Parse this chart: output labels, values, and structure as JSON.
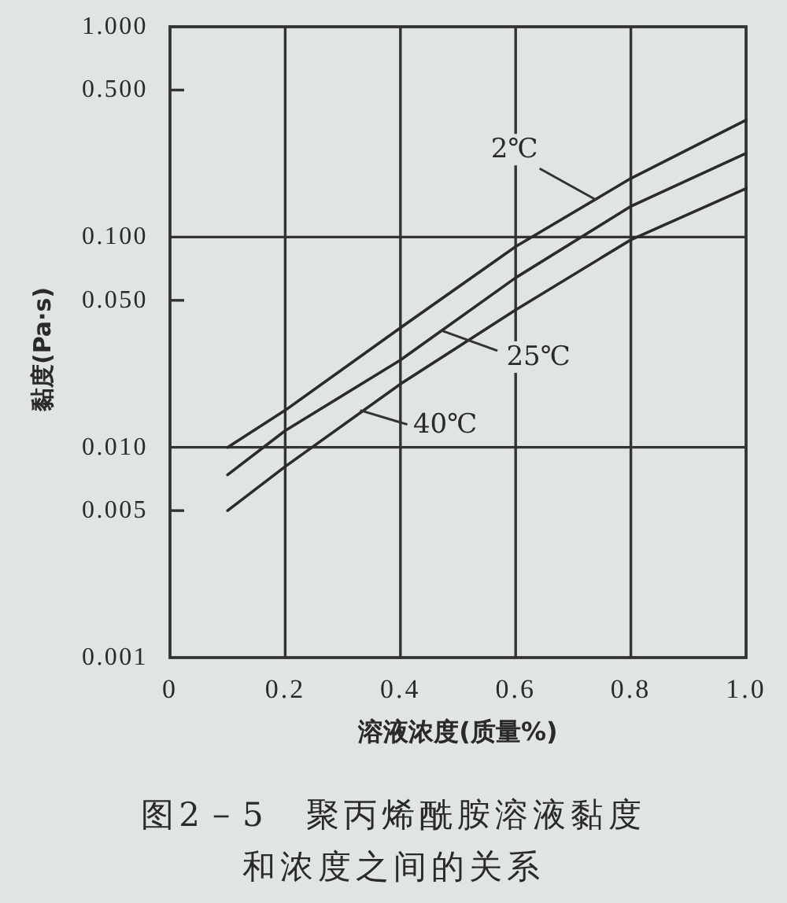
{
  "chart_data": {
    "type": "line",
    "title": "图2－5　聚丙烯酰胺溶液黏度和浓度之间的关系",
    "xlabel": "溶液浓度(质量%)",
    "ylabel": "黏度(Pa·s)",
    "log": "y",
    "grid": true,
    "xlim": [
      0,
      1.0
    ],
    "ylim": [
      0.001,
      1.0
    ],
    "xticks": [
      0,
      0.2,
      0.4,
      0.6,
      0.8,
      {
        "value": 1.0,
        "label": "1.0"
      }
    ],
    "yticks": [
      {
        "value": 0.001,
        "label": "0.001"
      },
      {
        "value": 0.005,
        "label": "0.005"
      },
      {
        "value": 0.01,
        "label": "0.010"
      },
      {
        "value": 0.05,
        "label": "0.050"
      },
      {
        "value": 0.1,
        "label": "0.100"
      },
      {
        "value": 0.5,
        "label": "0.500"
      },
      {
        "value": 1.0,
        "label": "1.000"
      }
    ],
    "series": [
      {
        "color": "#2b2b2b",
        "x": [
          0.1,
          0.2,
          0.4,
          0.6,
          0.8,
          1.0
        ],
        "values": [
          0.01,
          0.015,
          0.037,
          0.09,
          0.19,
          0.36
        ]
      },
      {
        "color": "#2b2b2b",
        "x": [
          0.1,
          0.2,
          0.4,
          0.6,
          0.8,
          1.0
        ],
        "values": [
          0.0074,
          0.012,
          0.026,
          0.064,
          0.14,
          0.25
        ]
      },
      {
        "color": "#2b2b2b",
        "x": [
          0.1,
          0.2,
          0.4,
          0.6,
          0.8,
          1.0
        ],
        "values": [
          0.005,
          0.0081,
          0.02,
          0.045,
          0.097,
          0.17
        ]
      }
    ],
    "annotations": [
      {
        "text": "2℃",
        "x": 0.74,
        "y": 0.15
      },
      {
        "text": "25℃",
        "x": 0.47,
        "y": 0.036
      },
      {
        "text": "40℃",
        "x": 0.33,
        "y": 0.015
      }
    ]
  }
}
